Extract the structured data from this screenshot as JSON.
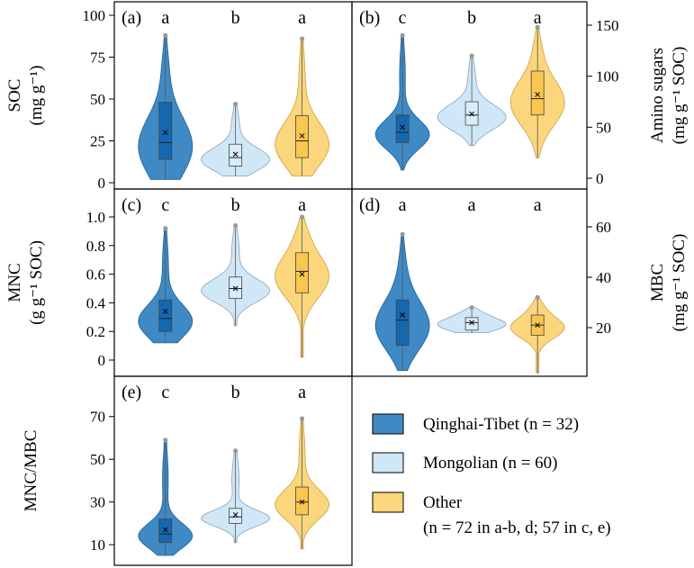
{
  "chart_data": [
    {
      "type": "violin",
      "panel": "(a)",
      "ylabel": "SOC",
      "yunit": "(mg g⁻¹)",
      "ylim": [
        0,
        100
      ],
      "yticks": [
        "0",
        "25",
        "50",
        "75",
        "100"
      ],
      "axis_side": "left",
      "groups": [
        {
          "name": "Qinghai-Tibet",
          "letter": "a",
          "min": 2,
          "q1": 14,
          "median": 24,
          "q3": 48,
          "max": 88,
          "mean": 30
        },
        {
          "name": "Mongolian",
          "letter": "b",
          "min": 4,
          "q1": 10,
          "median": 15,
          "q3": 23,
          "max": 47,
          "mean": 17
        },
        {
          "name": "Other",
          "letter": "a",
          "min": 4,
          "q1": 15,
          "median": 25,
          "q3": 40,
          "max": 86,
          "mean": 28
        }
      ]
    },
    {
      "type": "violin",
      "panel": "(b)",
      "ylabel": "Amino sugars",
      "yunit": "(mg g⁻¹ SOC)",
      "ylim": [
        0,
        150
      ],
      "yticks": [
        "0",
        "50",
        "100",
        "150"
      ],
      "axis_side": "right",
      "groups": [
        {
          "name": "Qinghai-Tibet",
          "letter": "c",
          "min": 8,
          "q1": 35,
          "median": 45,
          "q3": 62,
          "max": 140,
          "mean": 50
        },
        {
          "name": "Mongolian",
          "letter": "b",
          "min": 32,
          "q1": 52,
          "median": 62,
          "q3": 75,
          "max": 120,
          "mean": 63
        },
        {
          "name": "Other",
          "letter": "a",
          "min": 20,
          "q1": 62,
          "median": 78,
          "q3": 105,
          "max": 148,
          "mean": 82
        }
      ]
    },
    {
      "type": "violin",
      "panel": "(c)",
      "ylabel": "MNC",
      "yunit": "(g g⁻¹ SOC)",
      "ylim": [
        0,
        1.0
      ],
      "yticks": [
        "0",
        "0.2",
        "0.4",
        "0.6",
        "0.8",
        "1.0"
      ],
      "axis_side": "left",
      "groups": [
        {
          "name": "Qinghai-Tibet",
          "letter": "c",
          "min": 0.12,
          "q1": 0.2,
          "median": 0.29,
          "q3": 0.42,
          "max": 0.92,
          "mean": 0.34
        },
        {
          "name": "Mongolian",
          "letter": "b",
          "min": 0.24,
          "q1": 0.43,
          "median": 0.5,
          "q3": 0.58,
          "max": 0.94,
          "mean": 0.5
        },
        {
          "name": "Other",
          "letter": "a",
          "min": 0.02,
          "q1": 0.47,
          "median": 0.62,
          "q3": 0.75,
          "max": 1.0,
          "mean": 0.6
        }
      ]
    },
    {
      "type": "violin",
      "panel": "(d)",
      "ylabel": "MBC",
      "yunit": "(mg g⁻¹ SOC)",
      "ylim": [
        0,
        60
      ],
      "yticks": [
        "20",
        "40",
        "60"
      ],
      "axis_side": "right",
      "groups": [
        {
          "name": "Qinghai-Tibet",
          "letter": "a",
          "min": 3,
          "q1": 13,
          "median": 23,
          "q3": 31,
          "max": 57,
          "mean": 25
        },
        {
          "name": "Mongolian",
          "letter": "a",
          "min": 18,
          "q1": 19,
          "median": 22,
          "q3": 24,
          "max": 28,
          "mean": 22
        },
        {
          "name": "Other",
          "letter": "a",
          "min": 2,
          "q1": 17,
          "median": 21,
          "q3": 25,
          "max": 32,
          "mean": 21
        }
      ]
    },
    {
      "type": "violin",
      "panel": "(e)",
      "ylabel": "MNC/MBC",
      "yunit": "",
      "ylim": [
        5,
        80
      ],
      "yticks": [
        "10",
        "30",
        "50",
        "70"
      ],
      "axis_side": "left",
      "groups": [
        {
          "name": "Qinghai-Tibet",
          "letter": "c",
          "min": 5,
          "q1": 11,
          "median": 15,
          "q3": 22,
          "max": 59,
          "mean": 17
        },
        {
          "name": "Mongolian",
          "letter": "b",
          "min": 11,
          "q1": 20,
          "median": 23,
          "q3": 27,
          "max": 54,
          "mean": 24
        },
        {
          "name": "Other",
          "letter": "a",
          "min": 8,
          "q1": 24,
          "median": 30,
          "q3": 37,
          "max": 69,
          "mean": 30
        }
      ]
    }
  ],
  "legend": {
    "placement": "bottom-right",
    "entries": [
      {
        "label": "Qinghai-Tibet (n = 32)",
        "color": "#3f8ac4"
      },
      {
        "label": "Mongolian (n = 60)",
        "color": "#cfe7f7"
      },
      {
        "label": "Other",
        "note": "(n = 72 in a-b, d; 57 in c, e)",
        "color": "#fbd67d"
      }
    ]
  },
  "colors": {
    "qinghai_fill": "#3f8ac4",
    "qinghai_box": "#1568b0",
    "mongolian_fill": "#cfe7f7",
    "mongolian_box": "#d9ecf8",
    "other_fill": "#fbd67d",
    "other_box": "#f9c64f"
  }
}
